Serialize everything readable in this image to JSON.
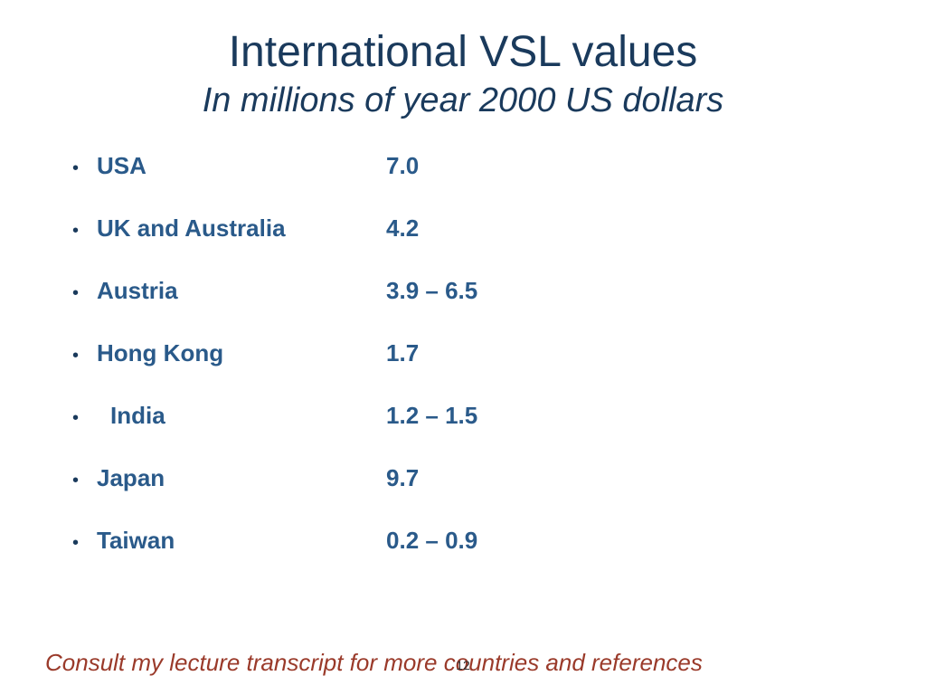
{
  "title": "International VSL values",
  "subtitle": "In millions of year 2000 US dollars",
  "items": [
    {
      "label": "USA",
      "value": "7.0",
      "indented": false
    },
    {
      "label": "UK and Australia",
      "value": "4.2",
      "indented": false
    },
    {
      "label": "Austria",
      "value": "3.9 – 6.5",
      "indented": false
    },
    {
      "label": "Hong Kong",
      "value": "1.7",
      "indented": false
    },
    {
      "label": "India",
      "value": "1.2 – 1.5",
      "indented": true
    },
    {
      "label": "Japan",
      "value": "9.7",
      "indented": false
    },
    {
      "label": "Taiwan",
      "value": "0.2 – 0.9",
      "indented": false
    }
  ],
  "footnote": "Consult my lecture transcript for more countries and references",
  "page_number": "12",
  "colors": {
    "title_color": "#1a3a5c",
    "list_color": "#2a5a8a",
    "footnote_color": "#9a3a2a",
    "background": "#ffffff"
  },
  "typography": {
    "title_fontsize": 48,
    "subtitle_fontsize": 38,
    "list_fontsize": 26,
    "footnote_fontsize": 26,
    "font_family": "Arial"
  }
}
